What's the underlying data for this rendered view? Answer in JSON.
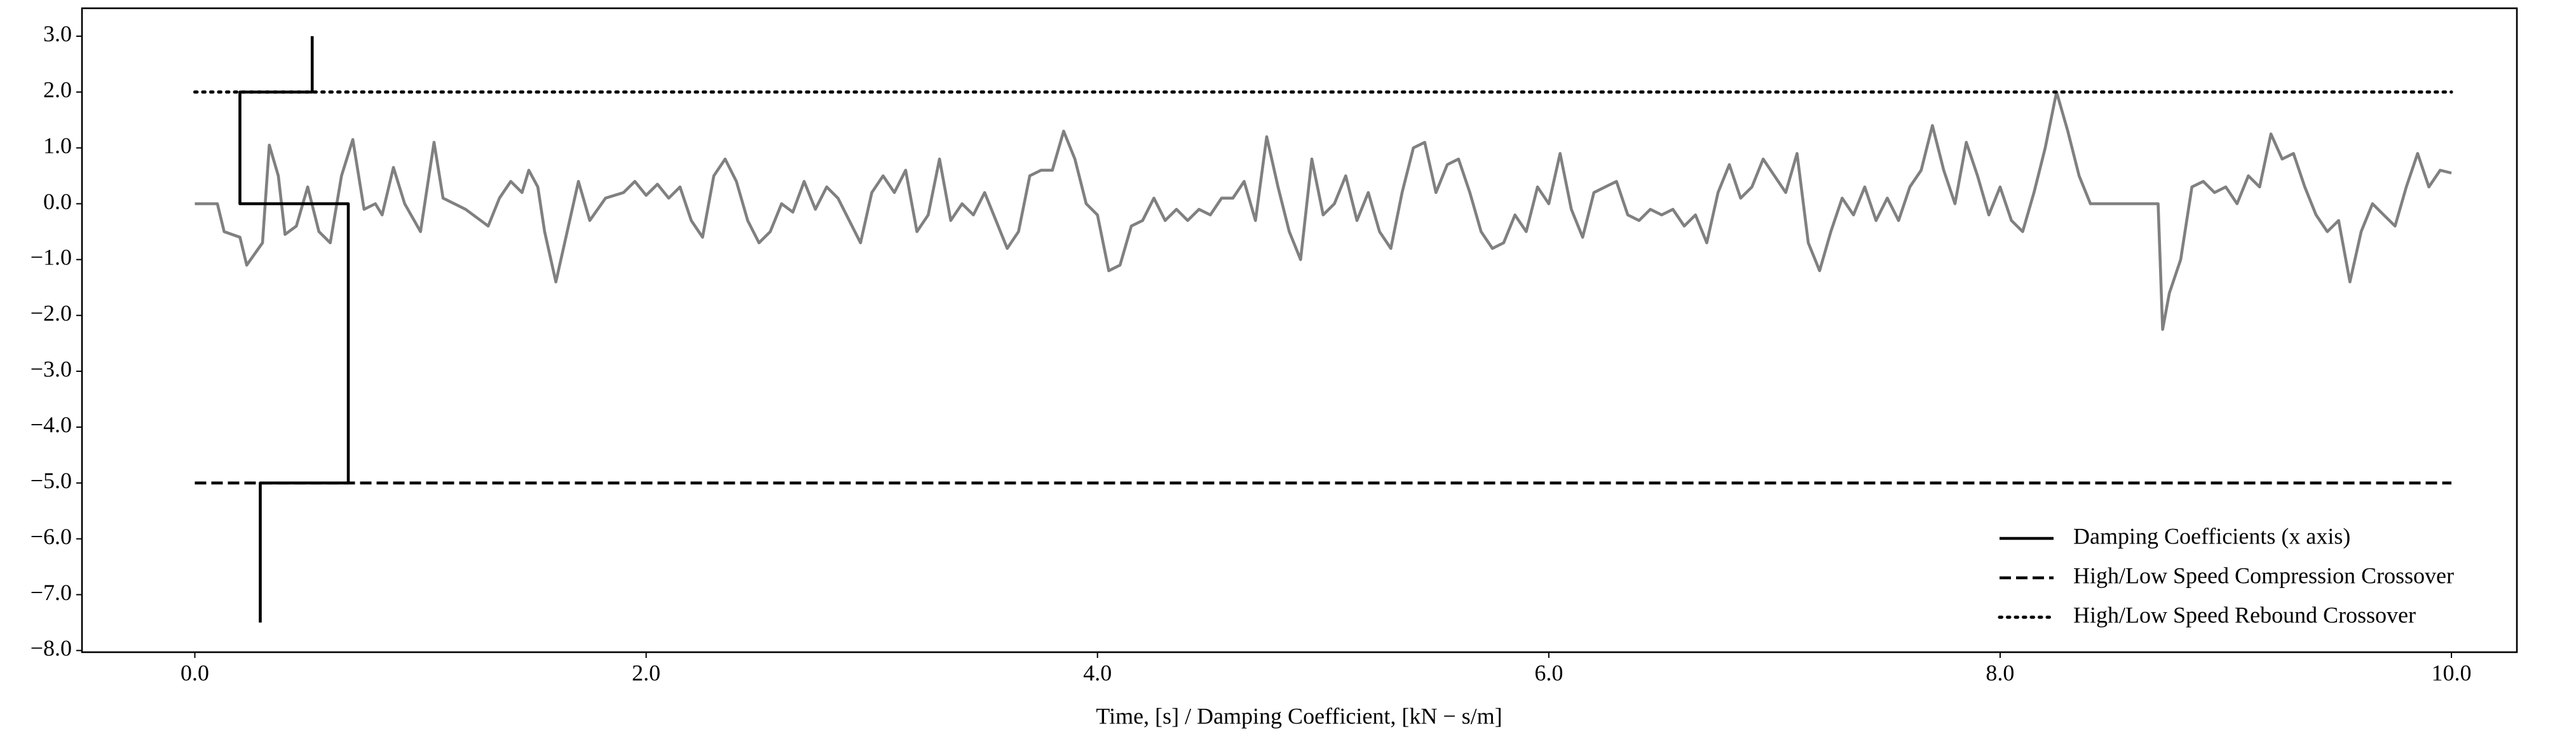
{
  "chart_data": {
    "type": "line",
    "x_label": "Time, [s] / Damping Coefficient, [kN − s/m]",
    "xlim": [
      -0.5,
      10.29
    ],
    "ylim": [
      -8.03,
      3.5
    ],
    "xticks": [
      {
        "value": 0,
        "label": "0.0"
      },
      {
        "value": 2,
        "label": "2.0"
      },
      {
        "value": 4,
        "label": "4.0"
      },
      {
        "value": 6,
        "label": "6.0"
      },
      {
        "value": 8,
        "label": "8.0"
      },
      {
        "value": 10,
        "label": "10.0"
      }
    ],
    "yticks": [
      {
        "value": 3,
        "label": "3.0"
      },
      {
        "value": 2,
        "label": "2.0"
      },
      {
        "value": 1,
        "label": "1.0"
      },
      {
        "value": 0,
        "label": "0.0"
      },
      {
        "value": -1,
        "label": "−1.0"
      },
      {
        "value": -2,
        "label": "−2.0"
      },
      {
        "value": -3,
        "label": "−3.0"
      },
      {
        "value": -4,
        "label": "−4.0"
      },
      {
        "value": -5,
        "label": "−5.0"
      },
      {
        "value": -6,
        "label": "−6.0"
      },
      {
        "value": -7,
        "label": "−7.0"
      },
      {
        "value": -8,
        "label": "−8.0"
      }
    ],
    "legend": "lower right",
    "series": [
      {
        "color": "#808080",
        "style": "solid",
        "x": [
          0,
          0.1,
          0.13,
          0.2,
          0.23,
          0.3,
          0.33,
          0.37,
          0.4,
          0.45,
          0.5,
          0.55,
          0.6,
          0.65,
          0.7,
          0.75,
          0.8,
          0.83,
          0.88,
          0.93,
          1.0,
          1.06,
          1.1,
          1.2,
          1.3,
          1.35,
          1.4,
          1.45,
          1.48,
          1.52,
          1.55,
          1.6,
          1.65,
          1.7,
          1.75,
          1.82,
          1.9,
          1.95,
          2.0,
          2.05,
          2.1,
          2.15,
          2.2,
          2.25,
          2.3,
          2.35,
          2.4,
          2.45,
          2.5,
          2.55,
          2.6,
          2.65,
          2.7,
          2.75,
          2.8,
          2.85,
          2.9,
          2.95,
          3.0,
          3.05,
          3.1,
          3.15,
          3.2,
          3.25,
          3.3,
          3.35,
          3.4,
          3.45,
          3.5,
          3.55,
          3.6,
          3.65,
          3.7,
          3.75,
          3.8,
          3.85,
          3.9,
          3.95,
          4.0,
          4.05,
          4.1,
          4.15,
          4.2,
          4.25,
          4.3,
          4.35,
          4.4,
          4.45,
          4.5,
          4.55,
          4.6,
          4.65,
          4.7,
          4.75,
          4.8,
          4.85,
          4.9,
          4.95,
          5.0,
          5.05,
          5.1,
          5.15,
          5.2,
          5.25,
          5.3,
          5.35,
          5.4,
          5.45,
          5.5,
          5.55,
          5.6,
          5.65,
          5.7,
          5.75,
          5.8,
          5.85,
          5.9,
          5.95,
          6.0,
          6.05,
          6.1,
          6.15,
          6.2,
          6.25,
          6.3,
          6.35,
          6.4,
          6.45,
          6.5,
          6.55,
          6.6,
          6.65,
          6.7,
          6.75,
          6.8,
          6.85,
          6.9,
          6.95,
          7.0,
          7.05,
          7.1,
          7.15,
          7.2,
          7.25,
          7.3,
          7.35,
          7.4,
          7.45,
          7.5,
          7.55,
          7.6,
          7.65,
          7.7,
          7.75,
          7.8,
          7.85,
          7.9,
          7.95,
          8.0,
          8.05,
          8.1,
          8.15,
          8.2,
          8.25,
          8.3,
          8.35,
          8.4,
          8.7,
          8.72,
          8.75,
          8.8,
          8.85,
          8.9,
          8.95,
          9.0,
          9.05,
          9.1,
          9.15,
          9.2,
          9.25,
          9.3,
          9.35,
          9.4,
          9.45,
          9.5,
          9.55,
          9.6,
          9.65,
          9.7,
          9.75,
          9.8,
          9.85,
          9.9,
          9.95,
          10.0
        ],
        "values": [
          0,
          0,
          -0.5,
          -0.6,
          -1.1,
          -0.7,
          1.05,
          0.5,
          -0.55,
          -0.4,
          0.3,
          -0.5,
          -0.7,
          0.5,
          1.15,
          -0.1,
          0.0,
          -0.2,
          0.65,
          0.0,
          -0.5,
          1.1,
          0.1,
          -0.1,
          -0.4,
          0.1,
          0.4,
          0.2,
          0.6,
          0.3,
          -0.5,
          -1.4,
          -0.5,
          0.4,
          -0.3,
          0.1,
          0.2,
          0.4,
          0.15,
          0.35,
          0.1,
          0.3,
          -0.3,
          -0.6,
          0.5,
          0.8,
          0.4,
          -0.3,
          -0.7,
          -0.5,
          0.0,
          -0.15,
          0.4,
          -0.1,
          0.3,
          0.1,
          -0.3,
          -0.7,
          0.2,
          0.5,
          0.2,
          0.6,
          -0.5,
          -0.2,
          0.8,
          -0.3,
          0.0,
          -0.2,
          0.2,
          -0.3,
          -0.8,
          -0.5,
          0.5,
          0.6,
          0.6,
          1.3,
          0.8,
          0.0,
          -0.2,
          -1.2,
          -1.1,
          -0.4,
          -0.3,
          0.1,
          -0.3,
          -0.1,
          -0.3,
          -0.1,
          -0.2,
          0.1,
          0.1,
          0.4,
          -0.3,
          1.2,
          0.3,
          -0.5,
          -1.0,
          0.8,
          -0.2,
          0.0,
          0.5,
          -0.3,
          0.2,
          -0.5,
          -0.8,
          0.2,
          1.0,
          1.1,
          0.2,
          0.7,
          0.8,
          0.2,
          -0.5,
          -0.8,
          -0.7,
          -0.2,
          -0.5,
          0.3,
          0.0,
          0.9,
          -0.1,
          -0.6,
          0.2,
          0.3,
          0.4,
          -0.2,
          -0.3,
          -0.1,
          -0.2,
          -0.1,
          -0.4,
          -0.2,
          -0.7,
          0.2,
          0.7,
          0.1,
          0.3,
          0.8,
          0.5,
          0.2,
          0.9,
          -0.7,
          -1.2,
          -0.5,
          0.1,
          -0.2,
          0.3,
          -0.3,
          0.1,
          -0.3,
          0.3,
          0.6,
          1.4,
          0.6,
          0.0,
          1.1,
          0.5,
          -0.2,
          0.3,
          -0.3,
          -0.5,
          0.2,
          1.0,
          2.0,
          1.3,
          0.5,
          0.0,
          0.0,
          -2.25,
          -1.6,
          -1.0,
          0.3,
          0.4,
          0.2,
          0.3,
          0.0,
          0.5,
          0.3,
          1.25,
          0.8,
          0.9,
          0.3,
          -0.2,
          -0.5,
          -0.3,
          -1.4,
          -0.5,
          0.0,
          -0.2,
          -0.4,
          0.3,
          0.9,
          0.3,
          0.6,
          0.55
        ]
      },
      {
        "name": "Damping Coefficients (x axis)",
        "color": "#000000",
        "style": "solid",
        "x": [
          0.52,
          0.52,
          0.2,
          0.2,
          0.68,
          0.68,
          0.29,
          0.29
        ],
        "values": [
          3.0,
          2.0,
          2.0,
          0.0,
          0.0,
          -5.0,
          -5.0,
          -7.5
        ]
      },
      {
        "name": "High/Low Speed Compression Crossover",
        "color": "#000000",
        "style": "dashed",
        "x": [
          0,
          10
        ],
        "values": [
          -5,
          -5
        ]
      },
      {
        "name": "High/Low Speed Rebound Crossover",
        "color": "#000000",
        "style": "dotted",
        "x": [
          0,
          10
        ],
        "values": [
          2,
          2
        ]
      }
    ]
  }
}
